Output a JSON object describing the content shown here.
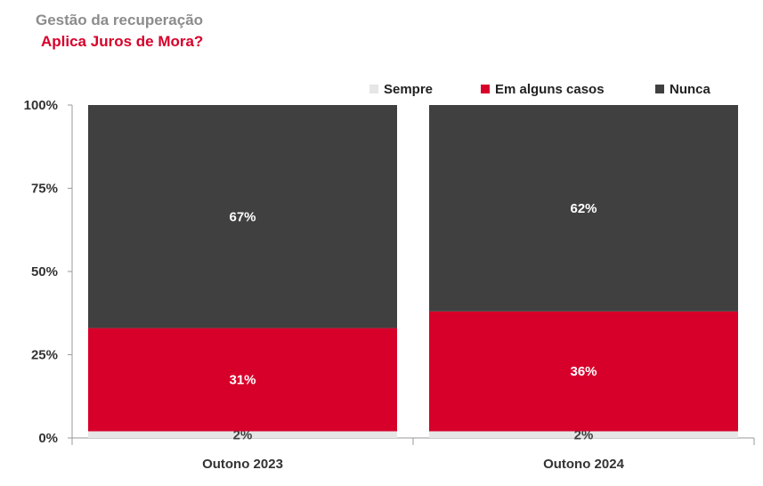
{
  "title": "Gestão da recuperação",
  "subtitle": "Aplica Juros de Mora?",
  "chart_data": {
    "type": "bar",
    "stacked": true,
    "percent_stacked": true,
    "categories": [
      "Outono 2023",
      "Outono 2024"
    ],
    "series": [
      {
        "name": "Sempre",
        "values": [
          2,
          2
        ],
        "labels": [
          "2%",
          "2%"
        ],
        "color": "#e6e6e6"
      },
      {
        "name": "Em alguns casos",
        "values": [
          31,
          36
        ],
        "labels": [
          "31%",
          "36%"
        ],
        "color": "#d7002a"
      },
      {
        "name": "Nunca",
        "values": [
          67,
          62
        ],
        "labels": [
          "67%",
          "62%"
        ],
        "color": "#404040"
      }
    ],
    "y_ticks": [
      "0%",
      "25%",
      "50%",
      "75%",
      "100%"
    ],
    "ylim": [
      0,
      100
    ],
    "legend_position": "top-right",
    "grid": false
  }
}
